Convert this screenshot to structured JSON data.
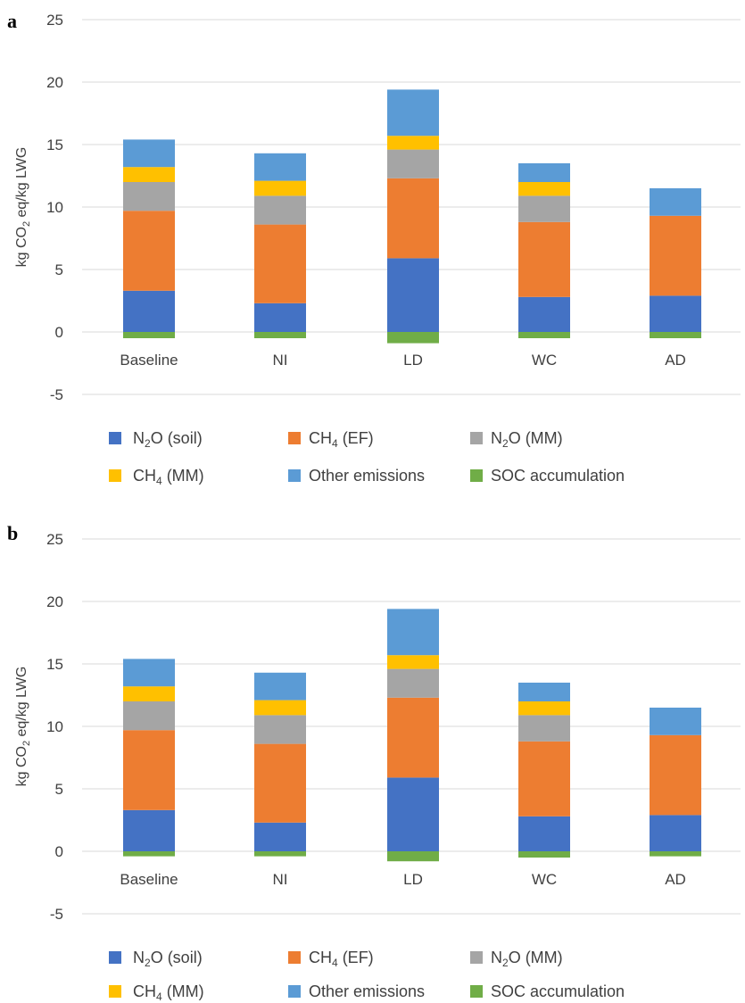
{
  "chart_data": [
    {
      "type": "bar",
      "stacked": true,
      "panel_label": "a",
      "categories": [
        "Baseline",
        "NI",
        "LD",
        "WC",
        "AD"
      ],
      "ylabel": "kg CO2 eq/kg LWG",
      "ylim": [
        -5,
        25
      ],
      "yticks": [
        25,
        20,
        15,
        10,
        5,
        0,
        -5
      ],
      "grid": true,
      "legend_position": "bottom",
      "series": [
        {
          "name": "N₂O (soil)",
          "label_main": "N",
          "label_sub": "2",
          "label_rest": "O (soil)",
          "color": "#4472c4",
          "values": [
            3.3,
            2.3,
            5.9,
            2.8,
            2.9
          ]
        },
        {
          "name": "CH₄ (EF)",
          "label_main": "CH",
          "label_sub": "4",
          "label_rest": " (EF)",
          "color": "#ed7d31",
          "values": [
            6.4,
            6.3,
            6.4,
            6.0,
            6.4
          ]
        },
        {
          "name": "N₂O (MM)",
          "label_main": "N",
          "label_sub": "2",
          "label_rest": "O (MM)",
          "color": "#a5a5a5",
          "values": [
            2.3,
            2.3,
            2.3,
            2.1,
            0
          ]
        },
        {
          "name": "CH₄  (MM)",
          "label_main": "CH",
          "label_sub": "4",
          "label_rest": "  (MM)",
          "color": "#ffc000",
          "values": [
            1.2,
            1.2,
            1.1,
            1.1,
            0
          ]
        },
        {
          "name": "Other emissions",
          "label_main": "Other emissions",
          "label_sub": "",
          "label_rest": "",
          "color": "#5b9bd5",
          "values": [
            2.2,
            2.2,
            3.7,
            1.5,
            2.2
          ]
        },
        {
          "name": "SOC accumulation",
          "label_main": "SOC accumulation",
          "label_sub": "",
          "label_rest": "",
          "color": "#70ad47",
          "values": [
            -0.5,
            -0.5,
            -0.9,
            -0.5,
            -0.5
          ]
        }
      ]
    },
    {
      "type": "bar",
      "stacked": true,
      "panel_label": "b",
      "categories": [
        "Baseline",
        "NI",
        "LD",
        "WC",
        "AD"
      ],
      "ylabel": "kg CO2 eq/kg LWG",
      "ylim": [
        -5,
        25
      ],
      "yticks": [
        25,
        20,
        15,
        10,
        5,
        0,
        -5
      ],
      "grid": true,
      "legend_position": "bottom",
      "series": [
        {
          "name": "N₂O (soil)",
          "label_main": "N",
          "label_sub": "2",
          "label_rest": "O (soil)",
          "color": "#4472c4",
          "values": [
            3.3,
            2.3,
            5.9,
            2.8,
            2.9
          ]
        },
        {
          "name": "CH₄ (EF)",
          "label_main": "CH",
          "label_sub": "4",
          "label_rest": " (EF)",
          "color": "#ed7d31",
          "values": [
            6.4,
            6.3,
            6.4,
            6.0,
            6.4
          ]
        },
        {
          "name": "N₂O (MM)",
          "label_main": "N",
          "label_sub": "2",
          "label_rest": "O (MM)",
          "color": "#a5a5a5",
          "values": [
            2.3,
            2.3,
            2.3,
            2.1,
            0
          ]
        },
        {
          "name": "CH₄  (MM)",
          "label_main": "CH",
          "label_sub": "4",
          "label_rest": "  (MM)",
          "color": "#ffc000",
          "values": [
            1.2,
            1.2,
            1.1,
            1.1,
            0
          ]
        },
        {
          "name": "Other emissions",
          "label_main": "Other emissions",
          "label_sub": "",
          "label_rest": "",
          "color": "#5b9bd5",
          "values": [
            2.2,
            2.2,
            3.7,
            1.5,
            2.2
          ]
        },
        {
          "name": "SOC accumulation",
          "label_main": "SOC accumulation",
          "label_sub": "",
          "label_rest": "",
          "color": "#70ad47",
          "values": [
            -0.4,
            -0.4,
            -0.8,
            -0.5,
            -0.4
          ]
        }
      ]
    }
  ]
}
